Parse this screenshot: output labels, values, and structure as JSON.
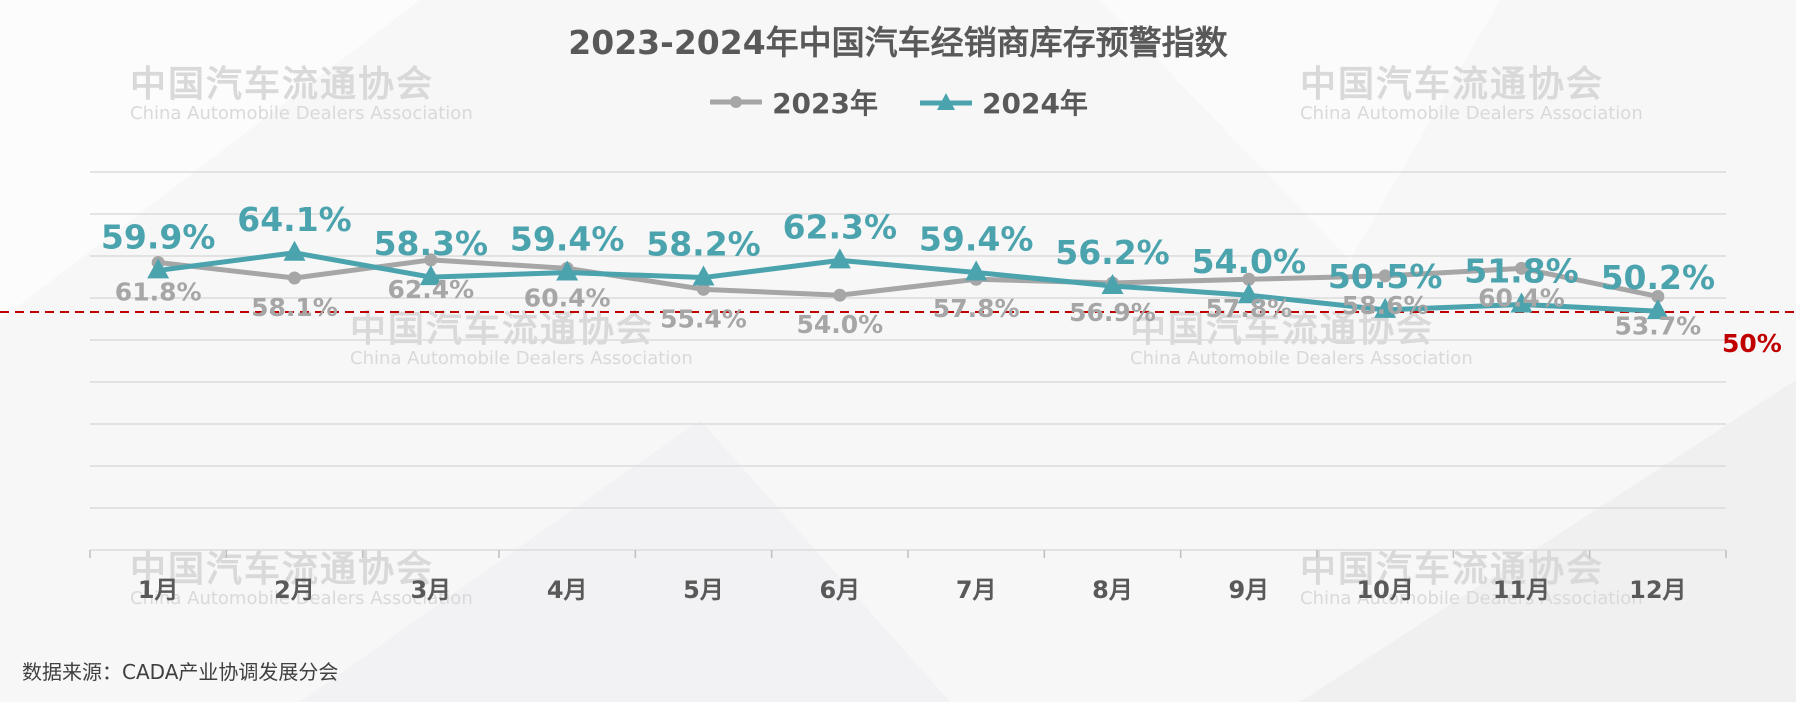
{
  "title": "2023-2024年中国汽车经销商库存预警指数",
  "footer": "数据来源：CADA产业协调发展分会",
  "threshold_label": "50%",
  "watermark": {
    "cn": "中国汽车流通协会",
    "en": "China Automobile Dealers Association",
    "logo": "CADA"
  },
  "colors": {
    "series_2023": "#a6a6a6",
    "series_2024": "#4ba3ae",
    "threshold": "#c00000",
    "axis_text": "#595959"
  },
  "chart_data": {
    "type": "line",
    "title": "2023-2024年中国汽车经销商库存预警指数",
    "categories": [
      "1月",
      "2月",
      "3月",
      "4月",
      "5月",
      "6月",
      "7月",
      "8月",
      "9月",
      "10月",
      "11月",
      "12月"
    ],
    "series": [
      {
        "name": "2023年",
        "marker": "circle",
        "values": [
          61.8,
          58.1,
          62.4,
          60.4,
          55.4,
          54.0,
          57.8,
          56.9,
          57.8,
          58.6,
          60.4,
          53.7
        ]
      },
      {
        "name": "2024年",
        "marker": "triangle",
        "values": [
          59.9,
          64.1,
          58.3,
          59.4,
          58.2,
          62.3,
          59.4,
          56.2,
          54.0,
          50.5,
          51.8,
          50.2
        ]
      }
    ],
    "threshold": 50,
    "grid": true,
    "legend": "top-center"
  }
}
